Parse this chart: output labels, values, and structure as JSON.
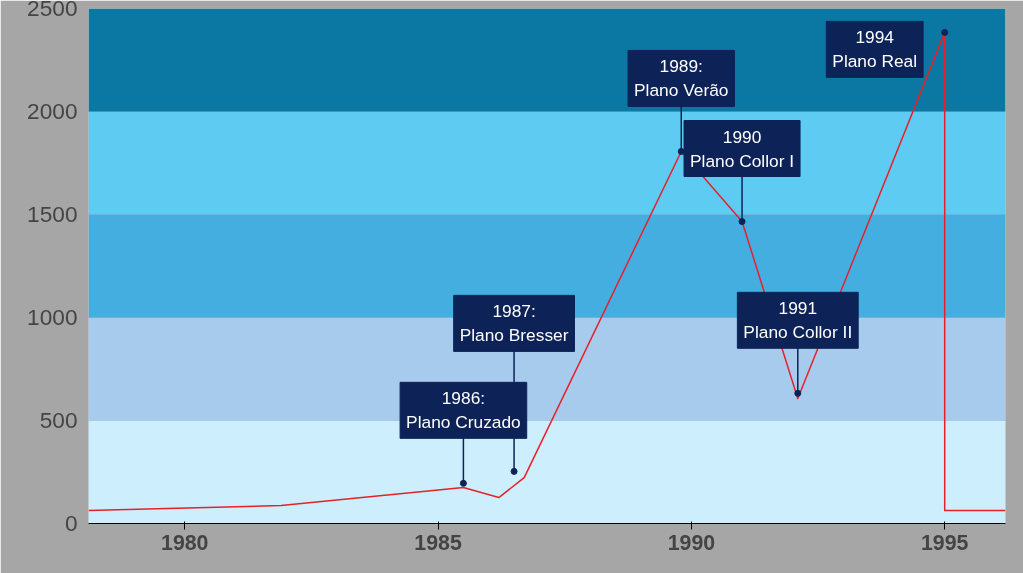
{
  "chart_data": {
    "type": "line",
    "x": [
      1978.1,
      1981.9,
      1985.5,
      1986.2,
      1986.7,
      1989.8,
      1991.0,
      1992.1,
      1995.0,
      1995.0,
      1996.2
    ],
    "series": [
      {
        "color": "#e8202a",
        "values": [
          63,
          87,
          175,
          126,
          223,
          1806,
          1466,
          607,
          2384,
          63,
          63
        ]
      }
    ],
    "xlim": [
      1978.1,
      1996.2
    ],
    "xticks": [
      1980,
      1985,
      1990,
      1995
    ],
    "ylim": [
      0,
      2500
    ],
    "yticks": [
      0,
      500,
      1000,
      1500,
      2000,
      2500
    ],
    "grid": "y",
    "marker": "none",
    "line_style": "solid",
    "bands": [
      {
        "axis": "y",
        "from": 0,
        "to": 500,
        "color": "#cdeefc"
      },
      {
        "axis": "y",
        "from": 500,
        "to": 1000,
        "color": "#a6cbec"
      },
      {
        "axis": "y",
        "from": 1000,
        "to": 1500,
        "color": "#45aee0"
      },
      {
        "axis": "y",
        "from": 1500,
        "to": 2000,
        "color": "#5ecbf2"
      },
      {
        "axis": "y",
        "from": 2000,
        "to": 2500,
        "color": "#0b77a3"
      }
    ],
    "annotations": [
      {
        "text": "1986:\nPlano Cruzado",
        "x": 1985.5,
        "y": 195
      },
      {
        "text": "1987:\nPlano Bresser",
        "x": 1986.5,
        "y": 253
      },
      {
        "text": "1989:\nPlano Verão",
        "x": 1989.8,
        "y": 1806
      },
      {
        "text": "1990\nPlano Collor I",
        "x": 1991.0,
        "y": 1466
      },
      {
        "text": "1991\nPlano Collor II",
        "x": 1992.1,
        "y": 632
      },
      {
        "text": "1994\nPlano Real",
        "x": 1995.0,
        "y": 2384
      }
    ]
  }
}
